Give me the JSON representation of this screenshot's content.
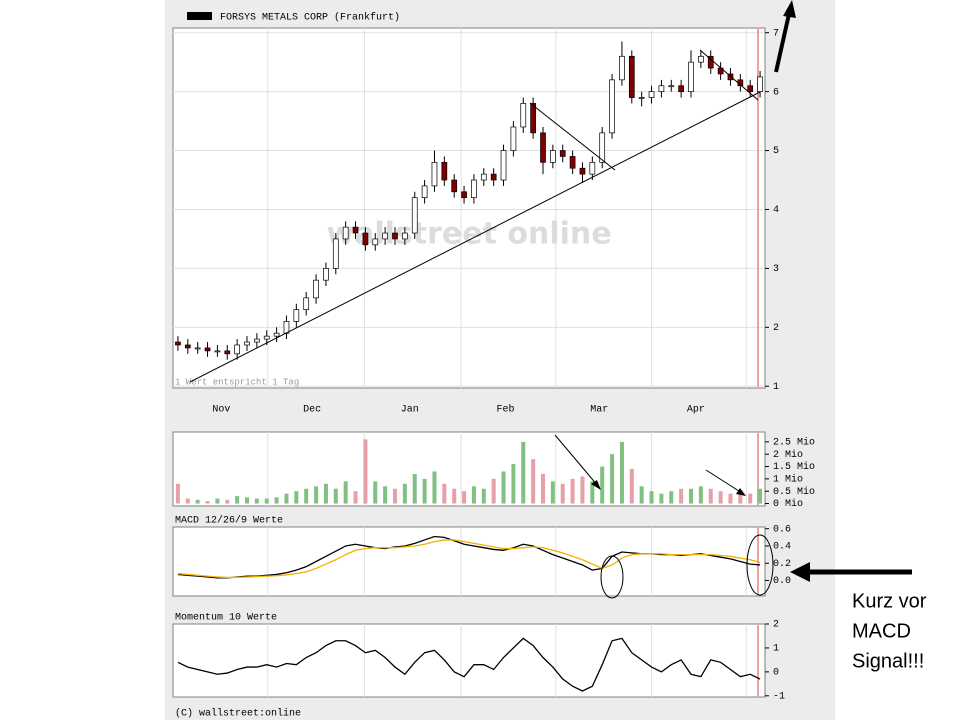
{
  "chart_data": [
    {
      "type": "candlestick",
      "legend": "FORSYS METALS CORP (Frankfurt)",
      "note": "1 Wert entspricht 1 Tag",
      "watermark": "wallstreet online",
      "x": [
        0,
        1,
        2,
        3,
        4,
        5,
        6,
        7,
        8,
        9,
        10,
        11,
        12,
        13,
        14,
        15,
        16,
        17,
        18,
        19,
        20,
        21,
        22,
        23,
        24,
        25,
        26,
        27,
        28,
        29,
        30,
        31,
        32,
        33,
        34,
        35,
        36,
        37,
        38,
        39,
        40,
        41,
        42,
        43,
        44,
        45,
        46,
        47,
        48,
        49,
        50,
        51,
        52,
        53,
        54,
        55,
        56,
        57,
        58,
        59
      ],
      "open": [
        1.75,
        1.7,
        1.65,
        1.65,
        1.6,
        1.6,
        1.55,
        1.7,
        1.75,
        1.8,
        1.85,
        1.9,
        2.1,
        2.3,
        2.5,
        2.8,
        3.0,
        3.5,
        3.7,
        3.6,
        3.4,
        3.5,
        3.6,
        3.5,
        3.6,
        4.2,
        4.4,
        4.8,
        4.5,
        4.3,
        4.2,
        4.5,
        4.6,
        4.5,
        5.0,
        5.4,
        5.8,
        5.3,
        4.8,
        5.0,
        4.9,
        4.7,
        4.6,
        4.8,
        5.3,
        6.2,
        6.6,
        5.9,
        5.9,
        6.0,
        6.1,
        6.1,
        6.0,
        6.5,
        6.6,
        6.4,
        6.3,
        6.2,
        6.1,
        6.0
      ],
      "high": [
        1.85,
        1.8,
        1.75,
        1.75,
        1.7,
        1.7,
        1.8,
        1.85,
        1.9,
        1.95,
        2.0,
        2.2,
        2.4,
        2.6,
        2.9,
        3.1,
        3.6,
        3.8,
        3.8,
        3.7,
        3.6,
        3.7,
        3.7,
        3.7,
        4.3,
        4.5,
        5.0,
        4.9,
        4.6,
        4.4,
        4.6,
        4.7,
        4.7,
        5.1,
        5.5,
        5.9,
        5.9,
        5.4,
        5.1,
        5.1,
        5.0,
        4.8,
        4.9,
        5.4,
        6.3,
        6.85,
        6.7,
        6.0,
        6.1,
        6.2,
        6.2,
        6.2,
        6.7,
        6.7,
        6.7,
        6.5,
        6.4,
        6.3,
        6.2,
        6.35
      ],
      "low": [
        1.6,
        1.55,
        1.55,
        1.5,
        1.5,
        1.45,
        1.45,
        1.6,
        1.65,
        1.7,
        1.75,
        1.8,
        2.0,
        2.2,
        2.4,
        2.7,
        2.9,
        3.4,
        3.5,
        3.3,
        3.3,
        3.4,
        3.4,
        3.4,
        3.5,
        4.1,
        4.3,
        4.4,
        4.2,
        4.1,
        4.1,
        4.4,
        4.4,
        4.4,
        4.9,
        5.3,
        5.2,
        4.6,
        4.7,
        4.8,
        4.6,
        4.45,
        4.5,
        4.7,
        5.2,
        6.1,
        5.8,
        5.75,
        5.8,
        5.9,
        6.0,
        5.9,
        5.9,
        6.4,
        6.3,
        6.2,
        6.1,
        6.0,
        5.9,
        5.9
      ],
      "close": [
        1.7,
        1.65,
        1.65,
        1.6,
        1.6,
        1.55,
        1.7,
        1.75,
        1.8,
        1.85,
        1.9,
        2.1,
        2.3,
        2.5,
        2.8,
        3.0,
        3.5,
        3.7,
        3.6,
        3.4,
        3.5,
        3.6,
        3.5,
        3.6,
        4.2,
        4.4,
        4.8,
        4.5,
        4.3,
        4.2,
        4.5,
        4.6,
        4.5,
        5.0,
        5.4,
        5.8,
        5.3,
        4.8,
        5.0,
        4.9,
        4.7,
        4.6,
        4.8,
        5.3,
        6.2,
        6.6,
        5.9,
        5.9,
        6.0,
        6.1,
        6.1,
        6.0,
        6.5,
        6.6,
        6.4,
        6.3,
        6.2,
        6.1,
        6.0,
        6.25
      ],
      "up_color": "#ffffff",
      "down_color": "#800000",
      "xlim": [
        -0.5,
        59.5
      ],
      "xticks": [
        {
          "value": 4.4,
          "label": "Nov"
        },
        {
          "value": 13.6,
          "label": "Dec"
        },
        {
          "value": 23.5,
          "label": "Jan"
        },
        {
          "value": 33.2,
          "label": "Feb"
        },
        {
          "value": 42.7,
          "label": "Mar"
        },
        {
          "value": 52.5,
          "label": "Apr"
        }
      ],
      "xgrid": [
        9.1,
        18.9,
        28.7,
        38.3,
        48.0,
        57.6
      ],
      "ylim": [
        0.97,
        7.08
      ],
      "yticks": [
        1,
        2,
        3,
        4,
        5,
        6,
        7
      ],
      "grid": true
    },
    {
      "type": "bar",
      "x": [
        0,
        1,
        2,
        3,
        4,
        5,
        6,
        7,
        8,
        9,
        10,
        11,
        12,
        13,
        14,
        15,
        16,
        17,
        18,
        19,
        20,
        21,
        22,
        23,
        24,
        25,
        26,
        27,
        28,
        29,
        30,
        31,
        32,
        33,
        34,
        35,
        36,
        37,
        38,
        39,
        40,
        41,
        42,
        43,
        44,
        45,
        46,
        47,
        48,
        49,
        50,
        51,
        52,
        53,
        54,
        55,
        56,
        57,
        58,
        59
      ],
      "values": [
        0.8,
        0.2,
        0.15,
        0.1,
        0.2,
        0.15,
        0.3,
        0.25,
        0.2,
        0.2,
        0.25,
        0.4,
        0.5,
        0.6,
        0.7,
        0.8,
        0.6,
        0.9,
        0.5,
        2.6,
        0.9,
        0.7,
        0.6,
        0.8,
        1.2,
        1.0,
        1.3,
        0.8,
        0.6,
        0.5,
        0.7,
        0.6,
        1.0,
        1.3,
        1.6,
        2.5,
        1.8,
        1.2,
        0.9,
        0.8,
        1.0,
        1.1,
        0.9,
        1.5,
        2.0,
        2.5,
        1.4,
        0.7,
        0.5,
        0.4,
        0.5,
        0.6,
        0.6,
        0.7,
        0.6,
        0.5,
        0.4,
        0.5,
        0.4,
        0.6
      ],
      "up_color": "#80c080",
      "down_color": "#e8a0a8",
      "xlim": [
        -0.5,
        59.5
      ],
      "xgrid": [
        9.1,
        18.9,
        28.7,
        38.3,
        48.0,
        57.6
      ],
      "ylim": [
        -0.1,
        2.9
      ],
      "yticks": [
        {
          "value": 0,
          "label": "0 Mio"
        },
        {
          "value": 0.5,
          "label": "0.5 Mio"
        },
        {
          "value": 1,
          "label": "1 Mio"
        },
        {
          "value": 1.5,
          "label": "1.5 Mio"
        },
        {
          "value": 2,
          "label": "2 Mio"
        },
        {
          "value": 2.5,
          "label": "2.5 Mio"
        }
      ],
      "grid": false
    },
    {
      "type": "line",
      "title": "MACD 12/26/9 Werte",
      "x": [
        0,
        1,
        2,
        3,
        4,
        5,
        6,
        7,
        8,
        9,
        10,
        11,
        12,
        13,
        14,
        15,
        16,
        17,
        18,
        19,
        20,
        21,
        22,
        23,
        24,
        25,
        26,
        27,
        28,
        29,
        30,
        31,
        32,
        33,
        34,
        35,
        36,
        37,
        38,
        39,
        40,
        41,
        42,
        43,
        44,
        45,
        46,
        47,
        48,
        49,
        50,
        51,
        52,
        53,
        54,
        55,
        56,
        57,
        58,
        59
      ],
      "series": [
        {
          "color": "#000000",
          "values": [
            0.07,
            0.06,
            0.05,
            0.04,
            0.03,
            0.03,
            0.04,
            0.05,
            0.05,
            0.06,
            0.07,
            0.09,
            0.12,
            0.16,
            0.22,
            0.28,
            0.34,
            0.4,
            0.42,
            0.4,
            0.38,
            0.37,
            0.39,
            0.4,
            0.43,
            0.47,
            0.51,
            0.5,
            0.46,
            0.42,
            0.4,
            0.38,
            0.36,
            0.35,
            0.38,
            0.42,
            0.4,
            0.35,
            0.3,
            0.26,
            0.22,
            0.18,
            0.12,
            0.14,
            0.28,
            0.33,
            0.32,
            0.31,
            0.31,
            0.3,
            0.3,
            0.29,
            0.3,
            0.31,
            0.29,
            0.27,
            0.25,
            0.22,
            0.19,
            0.18
          ]
        },
        {
          "color": "#f0b400",
          "values": [
            0.08,
            0.07,
            0.06,
            0.05,
            0.04,
            0.035,
            0.035,
            0.04,
            0.045,
            0.05,
            0.055,
            0.065,
            0.08,
            0.1,
            0.14,
            0.19,
            0.24,
            0.3,
            0.35,
            0.37,
            0.38,
            0.38,
            0.38,
            0.39,
            0.4,
            0.42,
            0.45,
            0.47,
            0.47,
            0.45,
            0.43,
            0.41,
            0.39,
            0.37,
            0.37,
            0.38,
            0.39,
            0.38,
            0.35,
            0.32,
            0.28,
            0.24,
            0.19,
            0.14,
            0.18,
            0.26,
            0.3,
            0.31,
            0.31,
            0.31,
            0.3,
            0.3,
            0.3,
            0.3,
            0.3,
            0.29,
            0.28,
            0.26,
            0.24,
            0.21
          ]
        }
      ],
      "xlim": [
        -0.5,
        59.5
      ],
      "xgrid": [
        9.1,
        18.9,
        28.7,
        38.3,
        48.0,
        57.6
      ],
      "ylim": [
        -0.18,
        0.62
      ],
      "yticks": [
        {
          "value": 0,
          "label": "0.0"
        },
        0.2,
        0.4,
        0.6
      ],
      "grid": false
    },
    {
      "type": "line",
      "title": "Momentum 10 Werte",
      "x": [
        0,
        1,
        2,
        3,
        4,
        5,
        6,
        7,
        8,
        9,
        10,
        11,
        12,
        13,
        14,
        15,
        16,
        17,
        18,
        19,
        20,
        21,
        22,
        23,
        24,
        25,
        26,
        27,
        28,
        29,
        30,
        31,
        32,
        33,
        34,
        35,
        36,
        37,
        38,
        39,
        40,
        41,
        42,
        43,
        44,
        45,
        46,
        47,
        48,
        49,
        50,
        51,
        52,
        53,
        54,
        55,
        56,
        57,
        58,
        59
      ],
      "series": [
        {
          "color": "#000000",
          "values": [
            0.4,
            0.2,
            0.1,
            0.0,
            -0.1,
            -0.05,
            0.1,
            0.2,
            0.2,
            0.3,
            0.2,
            0.35,
            0.3,
            0.6,
            0.8,
            1.1,
            1.3,
            1.3,
            1.1,
            0.8,
            0.9,
            0.6,
            0.2,
            -0.1,
            0.4,
            0.8,
            0.9,
            0.5,
            0.0,
            -0.2,
            0.3,
            0.3,
            0.1,
            0.6,
            1.0,
            1.4,
            1.1,
            0.6,
            0.2,
            -0.3,
            -0.6,
            -0.8,
            -0.6,
            0.3,
            1.3,
            1.4,
            0.8,
            0.5,
            0.2,
            0.0,
            0.3,
            0.5,
            -0.1,
            -0.2,
            0.5,
            0.4,
            0.1,
            -0.2,
            -0.1,
            -0.3
          ]
        }
      ],
      "xlim": [
        -0.5,
        59.5
      ],
      "xgrid": [
        9.1,
        18.9,
        28.7,
        38.3,
        48.0,
        57.6
      ],
      "ylim": [
        -1.05,
        2.0
      ],
      "yticks": [
        -1,
        0,
        1,
        2
      ],
      "grid": false
    }
  ],
  "footer": "(C) wallstreet:online",
  "annotation": [
    "Kurz vor",
    "MACD",
    "Signal!!!"
  ]
}
